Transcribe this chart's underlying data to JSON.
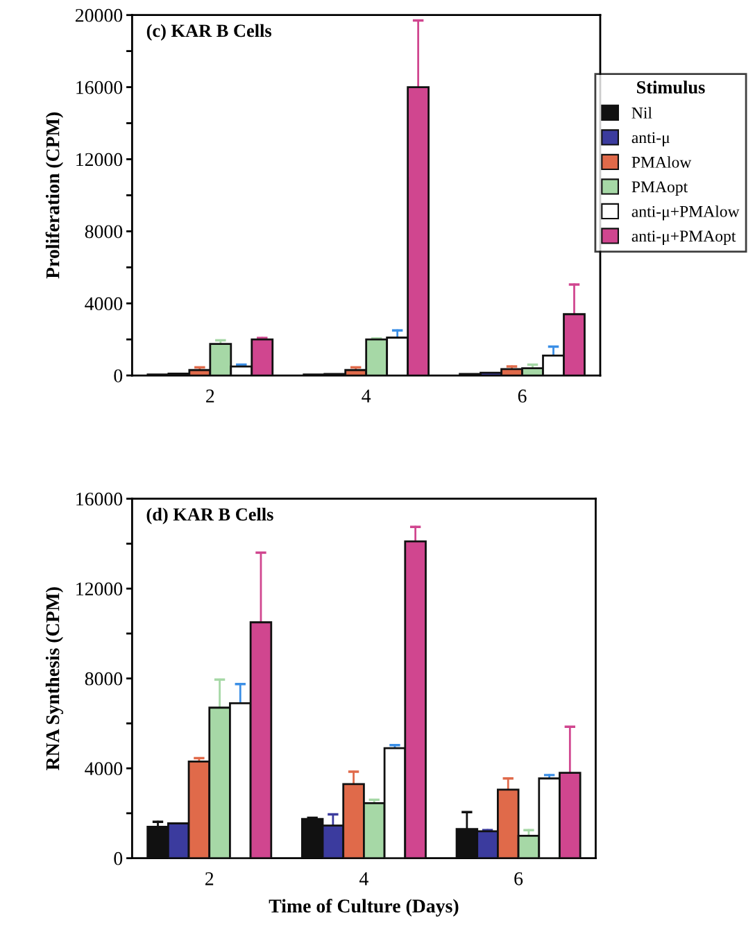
{
  "chart_data": [
    {
      "type": "bar",
      "title": "(c) KAR B Cells",
      "ylabel": "Proliferation (CPM)",
      "legend_title": "Stimulus",
      "legend": "top right",
      "grid": false,
      "categories": [
        "2",
        "4",
        "6"
      ],
      "ylim": [
        0,
        20000
      ],
      "yticks": [
        0,
        {
          "value": 2000,
          "label": null
        },
        4000,
        {
          "value": 6000,
          "label": null
        },
        8000,
        {
          "value": 10000,
          "label": null
        },
        12000,
        {
          "value": 14000,
          "label": null
        },
        16000,
        {
          "value": 18000,
          "label": null
        },
        20000
      ],
      "series": [
        {
          "name": "Nil",
          "color": "#111111",
          "values": [
            50,
            50,
            80
          ],
          "errors": [
            null,
            null,
            null
          ]
        },
        {
          "name": "anti-μ",
          "color": "#3b3b9e",
          "values": [
            100,
            80,
            150
          ],
          "errors": [
            null,
            null,
            null
          ]
        },
        {
          "name": "PMAlow",
          "color": "#e06a4a",
          "values": [
            300,
            300,
            350
          ],
          "errors": [
            [
              300,
              450
            ],
            [
              300,
              450
            ],
            [
              350,
              500
            ]
          ]
        },
        {
          "name": "PMAopt",
          "color": "#a6d8a6",
          "values": [
            1750,
            2000,
            400
          ],
          "errors": [
            [
              1750,
              1950
            ],
            [
              2000,
              2050
            ],
            [
              400,
              600
            ]
          ]
        },
        {
          "name": "anti-μ+PMAlow",
          "color": "#ffffff",
          "values": [
            500,
            2100,
            1100
          ],
          "errors": [
            [
              500,
              600
            ],
            [
              2100,
              2500
            ],
            [
              1100,
              1600
            ]
          ]
        },
        {
          "name": "anti-μ+PMAopt",
          "color": "#d0468f",
          "values": [
            2000,
            16000,
            3400
          ],
          "errors": [
            [
              2000,
              2080
            ],
            [
              16000,
              19700
            ],
            [
              3400,
              5050
            ]
          ]
        }
      ]
    },
    {
      "type": "bar",
      "title": "(d) KAR B Cells",
      "ylabel": "RNA Synthesis (CPM)",
      "xlabel": "Time of Culture (Days)",
      "grid": false,
      "categories": [
        "2",
        "4",
        "6"
      ],
      "ylim": [
        0,
        16000
      ],
      "yticks": [
        0,
        {
          "value": 2000,
          "label": null
        },
        4000,
        {
          "value": 6000,
          "label": null
        },
        8000,
        {
          "value": 10000,
          "label": null
        },
        12000,
        {
          "value": 14000,
          "label": null
        },
        16000
      ],
      "series": [
        {
          "color": "#111111",
          "values": [
            1400,
            1750,
            1300
          ],
          "errors": [
            [
              1400,
              1620
            ],
            [
              1750,
              1800
            ],
            [
              1300,
              2050
            ]
          ]
        },
        {
          "color": "#3b3b9e",
          "values": [
            1550,
            1450,
            1200
          ],
          "errors": [
            null,
            [
              1450,
              1950
            ],
            [
              1200,
              1250
            ]
          ]
        },
        {
          "color": "#e06a4a",
          "values": [
            4300,
            3300,
            3050
          ],
          "errors": [
            [
              4300,
              4450
            ],
            [
              3300,
              3850
            ],
            [
              3050,
              3550
            ]
          ]
        },
        {
          "color": "#a6d8a6",
          "values": [
            6700,
            2450,
            1000
          ],
          "errors": [
            [
              6700,
              7950
            ],
            [
              2450,
              2600
            ],
            [
              1000,
              1250
            ]
          ]
        },
        {
          "color": "#ffffff",
          "values": [
            6900,
            4900,
            3550
          ],
          "errors": [
            [
              6900,
              7750
            ],
            [
              4900,
              5030
            ],
            [
              3550,
              3700
            ]
          ]
        },
        {
          "color": "#d0468f",
          "values": [
            10500,
            14100,
            3800
          ],
          "errors": [
            [
              10500,
              13600
            ],
            [
              14100,
              14750
            ],
            [
              3800,
              5850
            ]
          ]
        }
      ]
    }
  ]
}
